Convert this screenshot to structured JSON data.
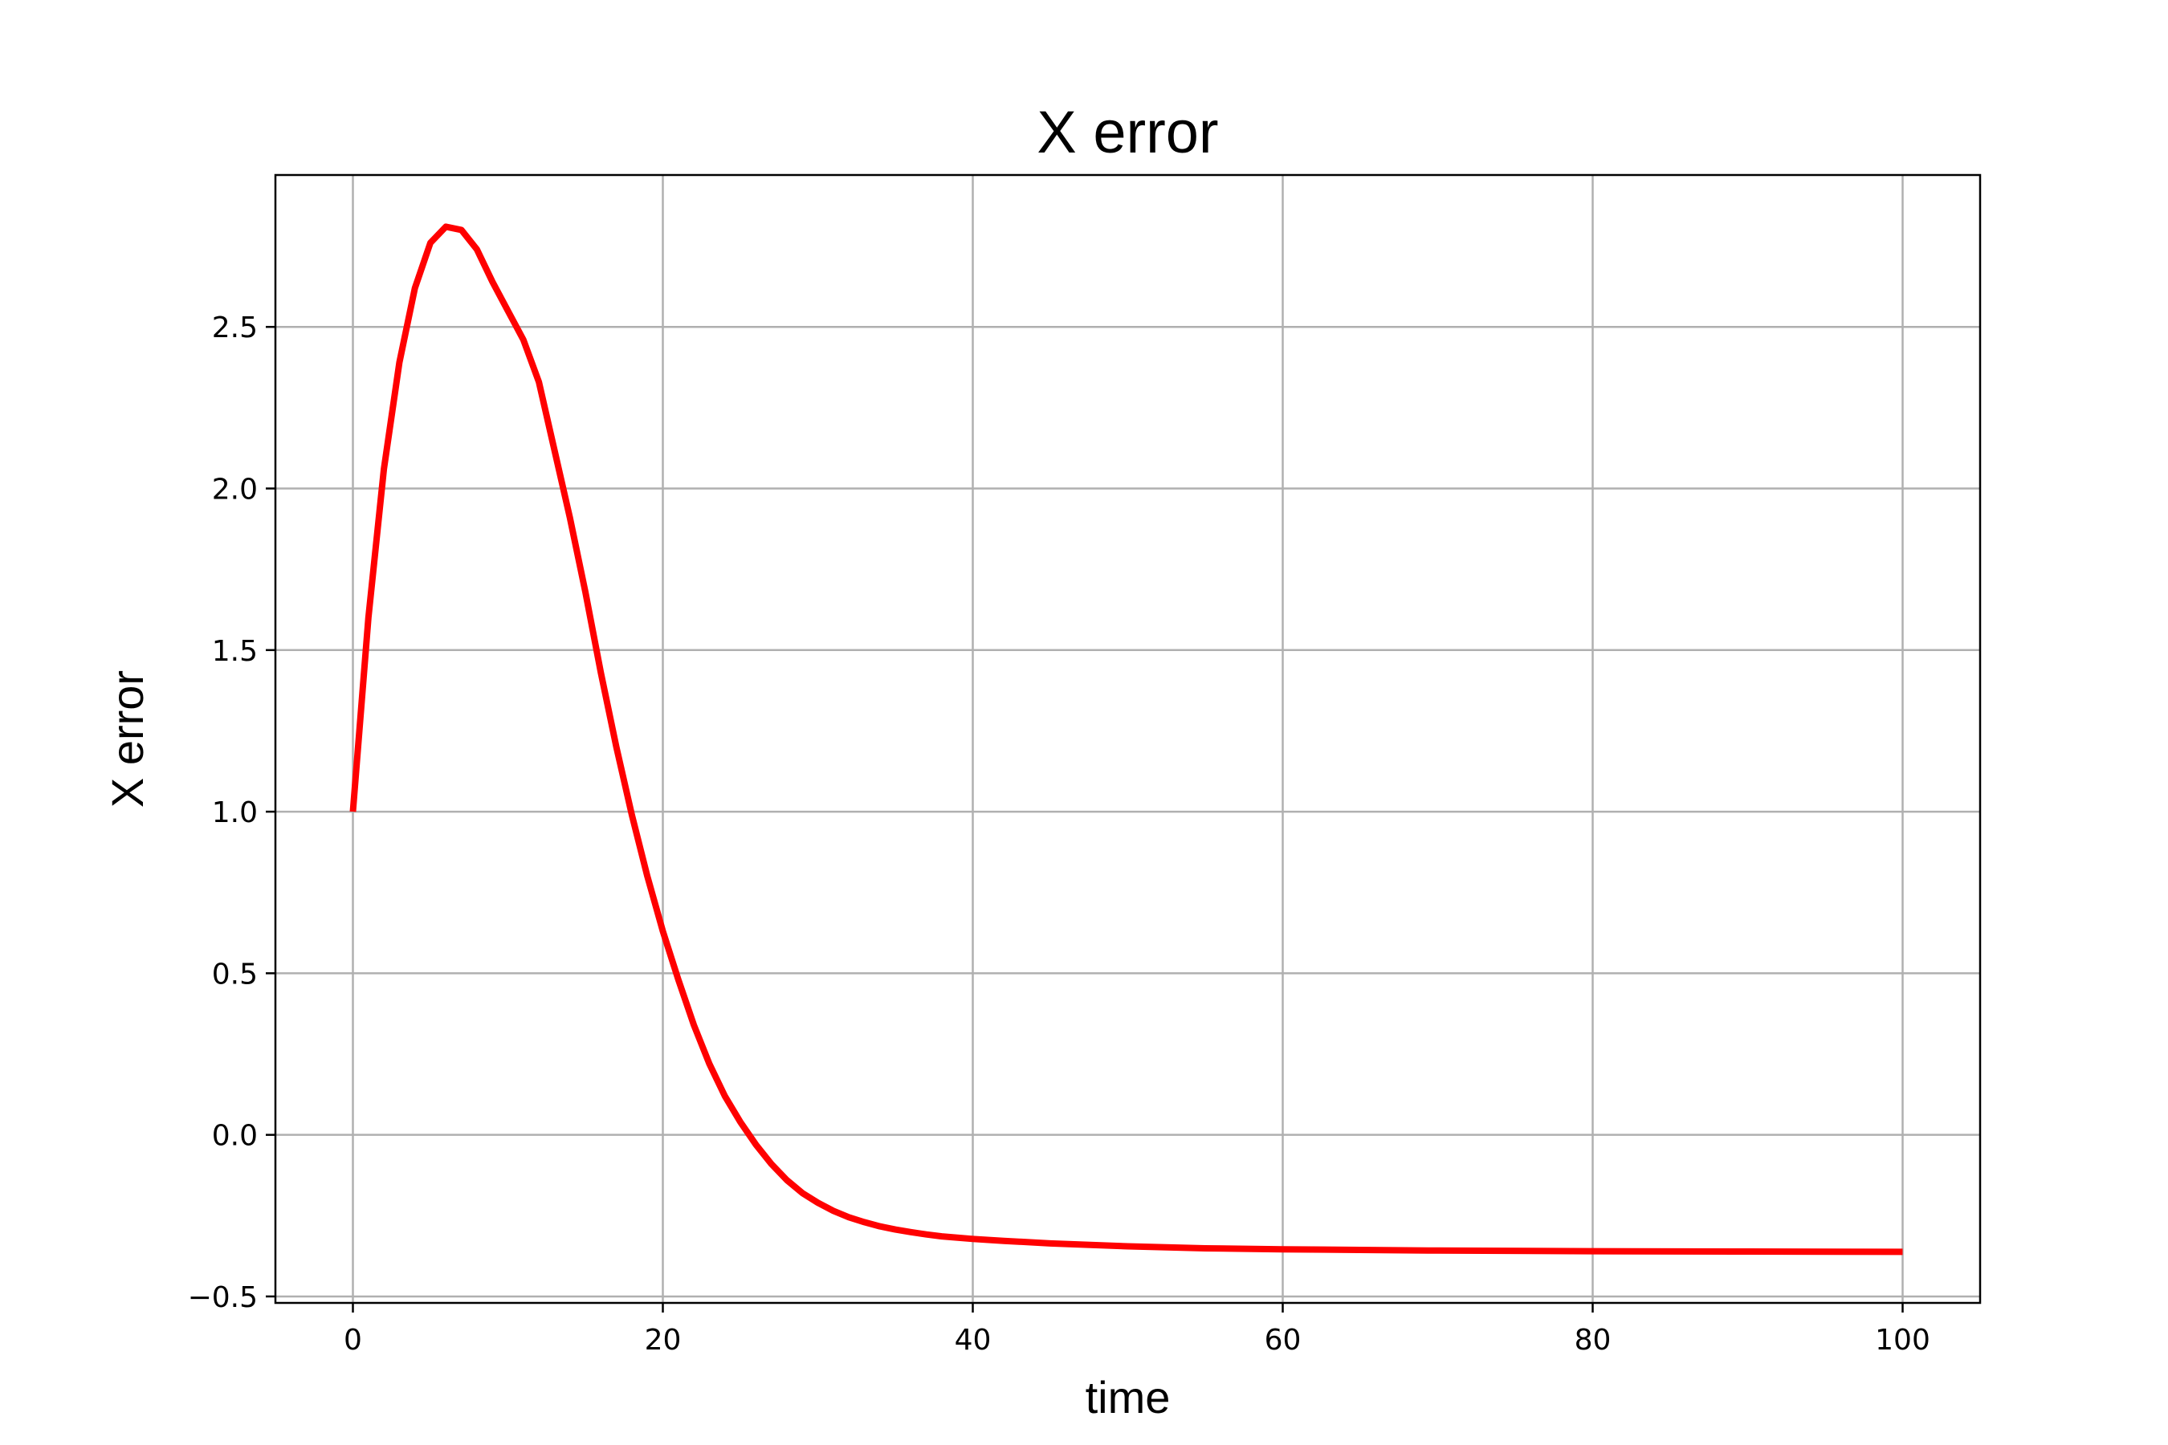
{
  "chart_data": {
    "type": "line",
    "title": "X error",
    "xlabel": "time",
    "ylabel": "X error",
    "xlim": [
      -5,
      105
    ],
    "ylim": [
      -0.52,
      2.97
    ],
    "xticks": [
      0,
      20,
      40,
      60,
      80,
      100
    ],
    "xtick_labels": [
      "0",
      "20",
      "40",
      "60",
      "80",
      "100"
    ],
    "yticks": [
      -0.5,
      0.0,
      0.5,
      1.0,
      1.5,
      2.0,
      2.5
    ],
    "ytick_labels": [
      "−0.5",
      "0.0",
      "0.5",
      "1.0",
      "1.5",
      "2.0",
      "2.5"
    ],
    "grid": true,
    "series": [
      {
        "color": "#ff0000",
        "x": [
          0,
          1,
          2,
          3,
          4,
          5,
          6,
          7,
          8,
          9,
          10,
          11,
          12,
          13,
          14,
          15,
          16,
          17,
          18,
          19,
          20,
          21,
          22,
          23,
          24,
          25,
          26,
          27,
          28,
          29,
          30,
          31,
          32,
          33,
          34,
          35,
          36,
          37,
          38,
          40,
          42,
          45,
          50,
          55,
          60,
          70,
          80,
          90,
          100
        ],
        "y": [
          1.0,
          1.6,
          2.06,
          2.39,
          2.62,
          2.76,
          2.81,
          2.8,
          2.74,
          2.64,
          2.55,
          2.46,
          2.33,
          2.12,
          1.91,
          1.68,
          1.43,
          1.2,
          0.99,
          0.8,
          0.63,
          0.48,
          0.34,
          0.22,
          0.12,
          0.04,
          -0.03,
          -0.09,
          -0.14,
          -0.18,
          -0.21,
          -0.235,
          -0.255,
          -0.27,
          -0.283,
          -0.293,
          -0.301,
          -0.308,
          -0.314,
          -0.322,
          -0.328,
          -0.336,
          -0.345,
          -0.351,
          -0.354,
          -0.358,
          -0.36,
          -0.361,
          -0.362
        ]
      }
    ]
  }
}
